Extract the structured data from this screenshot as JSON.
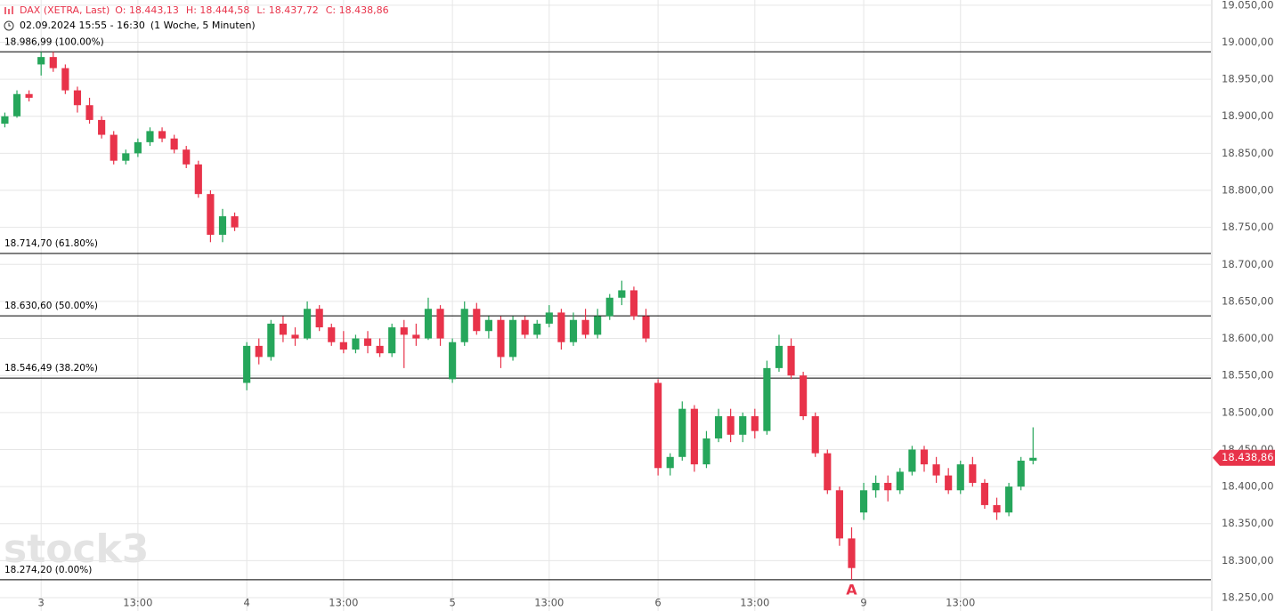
{
  "header": {
    "symbol": "DAX (XETRA, Last)",
    "ohlc": [
      {
        "label": "O:",
        "value": "18.443,13"
      },
      {
        "label": "H:",
        "value": "18.444,58"
      },
      {
        "label": "L:",
        "value": "18.437,72"
      },
      {
        "label": "C:",
        "value": "18.438,86"
      }
    ],
    "period": "02.09.2024 15:55 - 16:30",
    "timeframe": "(1 Woche, 5 Minuten)"
  },
  "chart_data": {
    "type": "candlestick",
    "watermark": "stock3",
    "up_color": "#26a65b",
    "down_color": "#e8334a",
    "open": [
      18890,
      18900,
      18930,
      18970,
      18980,
      18965,
      18935,
      18915,
      18895,
      18875,
      18840,
      18850,
      18865,
      18880,
      18870,
      18855,
      18835,
      18795,
      18740,
      18765,
      18540,
      18590,
      18575,
      18620,
      18605,
      18600,
      18640,
      18615,
      18595,
      18585,
      18600,
      18590,
      18580,
      18615,
      18605,
      18600,
      18640,
      18545,
      18595,
      18640,
      18610,
      18625,
      18575,
      18625,
      18605,
      18620,
      18635,
      18595,
      18625,
      18605,
      18630,
      18655,
      18665,
      18630,
      18540,
      18425,
      18440,
      18505,
      18430,
      18465,
      18495,
      18470,
      18495,
      18475,
      18560,
      18590,
      18550,
      18495,
      18445,
      18395,
      18330,
      18365,
      18395,
      18405,
      18395,
      18420,
      18450,
      18430,
      18415,
      18395,
      18430,
      18405,
      18375,
      18365,
      18400,
      18435
    ],
    "high": [
      18905,
      18935,
      18935,
      18987,
      18987,
      18970,
      18940,
      18925,
      18900,
      18880,
      18855,
      18870,
      18885,
      18885,
      18875,
      18860,
      18840,
      18800,
      18775,
      18770,
      18595,
      18600,
      18625,
      18630,
      18615,
      18650,
      18645,
      18620,
      18610,
      18605,
      18610,
      18600,
      18620,
      18625,
      18620,
      18655,
      18645,
      18600,
      18650,
      18648,
      18630,
      18630,
      18630,
      18630,
      18625,
      18645,
      18640,
      18635,
      18640,
      18640,
      18660,
      18678,
      18670,
      18640,
      18545,
      18445,
      18515,
      18510,
      18475,
      18505,
      18505,
      18500,
      18505,
      18570,
      18605,
      18600,
      18555,
      18500,
      18450,
      18400,
      18345,
      18405,
      18415,
      18415,
      18425,
      18455,
      18455,
      18440,
      18425,
      18435,
      18440,
      18410,
      18385,
      18405,
      18440,
      18480
    ],
    "low": [
      18885,
      18898,
      18920,
      18955,
      18960,
      18930,
      18905,
      18890,
      18870,
      18835,
      18835,
      18845,
      18860,
      18865,
      18850,
      18830,
      18790,
      18730,
      18730,
      18745,
      18530,
      18565,
      18570,
      18595,
      18590,
      18598,
      18610,
      18590,
      18580,
      18580,
      18580,
      18575,
      18575,
      18560,
      18590,
      18598,
      18590,
      18540,
      18590,
      18605,
      18600,
      18560,
      18570,
      18600,
      18600,
      18615,
      18585,
      18590,
      18600,
      18600,
      18625,
      18645,
      18625,
      18595,
      18415,
      18415,
      18435,
      18420,
      18425,
      18460,
      18460,
      18460,
      18465,
      18470,
      18555,
      18545,
      18490,
      18440,
      18390,
      18320,
      18274.2,
      18355,
      18385,
      18380,
      18390,
      18415,
      18420,
      18405,
      18390,
      18390,
      18400,
      18370,
      18355,
      18360,
      18395,
      18430
    ],
    "close": [
      18900,
      18930,
      18925,
      18980,
      18965,
      18935,
      18915,
      18895,
      18875,
      18840,
      18850,
      18865,
      18880,
      18870,
      18855,
      18835,
      18795,
      18740,
      18765,
      18750,
      18590,
      18575,
      18620,
      18605,
      18600,
      18640,
      18615,
      18595,
      18585,
      18600,
      18590,
      18580,
      18615,
      18605,
      18600,
      18640,
      18600,
      18595,
      18640,
      18610,
      18625,
      18575,
      18625,
      18605,
      18620,
      18635,
      18595,
      18625,
      18605,
      18630,
      18655,
      18665,
      18630,
      18600,
      18425,
      18440,
      18505,
      18430,
      18465,
      18495,
      18470,
      18495,
      18475,
      18560,
      18590,
      18550,
      18495,
      18445,
      18395,
      18330,
      18290,
      18395,
      18405,
      18395,
      18420,
      18450,
      18430,
      18415,
      18395,
      18430,
      18405,
      18375,
      18365,
      18400,
      18435,
      18438.86
    ],
    "xlim": [
      -0.4,
      99.7
    ],
    "xticks": [
      {
        "value": 3,
        "label": "3"
      },
      {
        "value": 11,
        "label": "13:00"
      },
      {
        "value": 20,
        "label": "4"
      },
      {
        "value": 28,
        "label": "13:00"
      },
      {
        "value": 37,
        "label": "5"
      },
      {
        "value": 45,
        "label": "13:00"
      },
      {
        "value": 54,
        "label": "6"
      },
      {
        "value": 62,
        "label": "13:00"
      },
      {
        "value": 71,
        "label": "9"
      },
      {
        "value": 79,
        "label": "13:00"
      }
    ],
    "ylim": [
      18232,
      19057
    ],
    "yticks": [
      {
        "value": 18250,
        "label": "18.250,00"
      },
      {
        "value": 18300,
        "label": "18.300,00"
      },
      {
        "value": 18350,
        "label": "18.350,00"
      },
      {
        "value": 18400,
        "label": "18.400,00"
      },
      {
        "value": 18450,
        "label": "18.450,00"
      },
      {
        "value": 18500,
        "label": "18.500,00"
      },
      {
        "value": 18550,
        "label": "18.550,00"
      },
      {
        "value": 18600,
        "label": "18.600,00"
      },
      {
        "value": 18650,
        "label": "18.650,00"
      },
      {
        "value": 18700,
        "label": "18.700,00"
      },
      {
        "value": 18750,
        "label": "18.750,00"
      },
      {
        "value": 18800,
        "label": "18.800,00"
      },
      {
        "value": 18850,
        "label": "18.850,00"
      },
      {
        "value": 18900,
        "label": "18.900,00"
      },
      {
        "value": 18950,
        "label": "18.950,00"
      },
      {
        "value": 19000,
        "label": "19.000,00"
      },
      {
        "value": 19050,
        "label": "19.050,00"
      }
    ],
    "grid": true,
    "fib_levels": [
      {
        "value": 18986.99,
        "label": "18.986,99 (100.00%)"
      },
      {
        "value": 18714.7,
        "label": "18.714,70 (61.80%)"
      },
      {
        "value": 18630.6,
        "label": "18.630,60 (50.00%)"
      },
      {
        "value": 18546.49,
        "label": "18.546,49 (38.20%)"
      },
      {
        "value": 18274.2,
        "label": "18.274,20 (0.00%)"
      }
    ],
    "last_price": {
      "value": 18438.86,
      "label": "18.438,86"
    },
    "annotation": "A"
  }
}
